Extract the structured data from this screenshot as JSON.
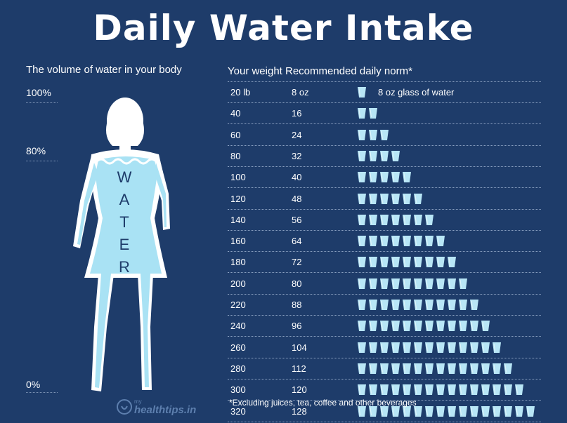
{
  "title": "Daily Water Intake",
  "left": {
    "heading": "The volume of water in your body",
    "percent_labels": [
      "100%",
      "80%",
      "0%"
    ],
    "water_letters": [
      "W",
      "A",
      "T",
      "E",
      "R"
    ],
    "body_water_fraction": 0.8
  },
  "right": {
    "heading": "Your weight Recommended daily norm*",
    "glass_label": "8 oz glass of water",
    "rows": [
      {
        "weight": "20 lb",
        "norm": "8 oz",
        "glasses": 1
      },
      {
        "weight": "40",
        "norm": "16",
        "glasses": 2
      },
      {
        "weight": "60",
        "norm": "24",
        "glasses": 3
      },
      {
        "weight": "80",
        "norm": "32",
        "glasses": 4
      },
      {
        "weight": "100",
        "norm": "40",
        "glasses": 5
      },
      {
        "weight": "120",
        "norm": "48",
        "glasses": 6
      },
      {
        "weight": "140",
        "norm": "56",
        "glasses": 7
      },
      {
        "weight": "160",
        "norm": "64",
        "glasses": 8
      },
      {
        "weight": "180",
        "norm": "72",
        "glasses": 9
      },
      {
        "weight": "200",
        "norm": "80",
        "glasses": 10
      },
      {
        "weight": "220",
        "norm": "88",
        "glasses": 11
      },
      {
        "weight": "240",
        "norm": "96",
        "glasses": 12
      },
      {
        "weight": "260",
        "norm": "104",
        "glasses": 13
      },
      {
        "weight": "280",
        "norm": "112",
        "glasses": 14
      },
      {
        "weight": "300",
        "norm": "120",
        "glasses": 15
      },
      {
        "weight": "320",
        "norm": "128",
        "glasses": 16
      }
    ],
    "footnote": "*Excluding juices, tea, coffee and other beverages"
  },
  "logo_text": "myhealthtips.in",
  "colors": {
    "background": "#1e3c6a",
    "water": "#a9e2f4",
    "body_outline": "#ffffff",
    "glass": "#b8e6f6"
  }
}
